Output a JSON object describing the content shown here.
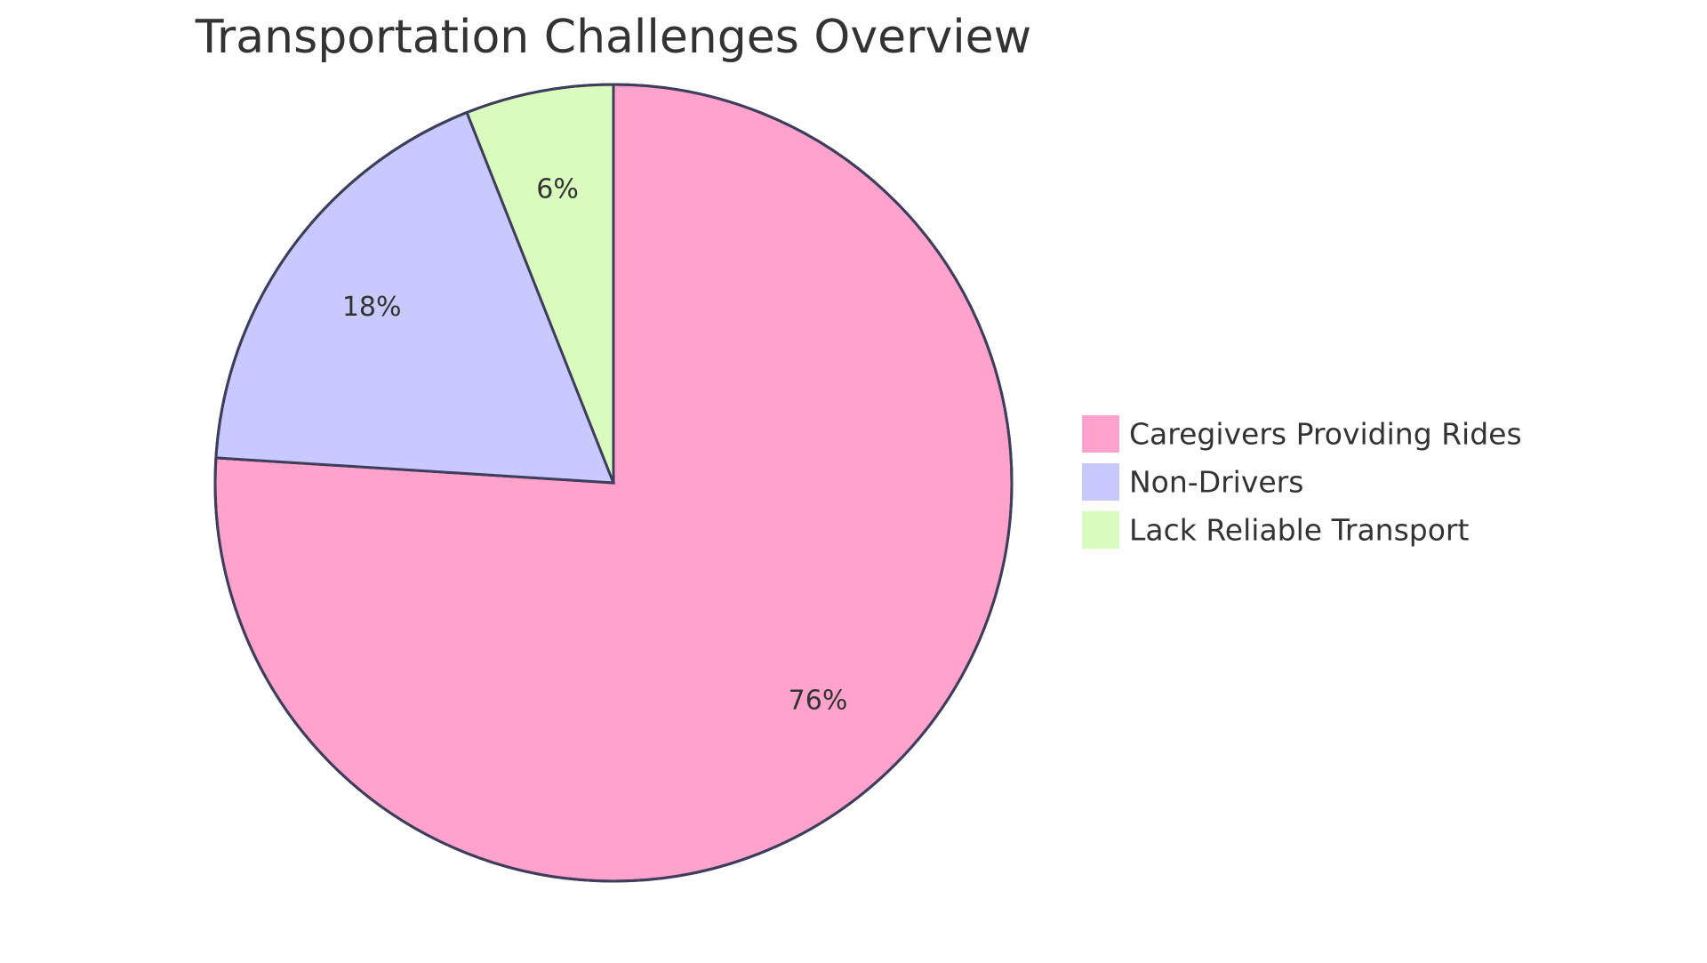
{
  "chart_data": {
    "type": "pie",
    "title": "Transportation Challenges Overview",
    "slices": [
      {
        "label": "Caregivers Providing Rides",
        "value": 76,
        "display": "76%",
        "color": "#FFA2CC"
      },
      {
        "label": "Non-Drivers",
        "value": 18,
        "display": "18%",
        "color": "#C8CAFF"
      },
      {
        "label": "Lack Reliable Transport",
        "value": 6,
        "display": "6%",
        "color": "#DAFBBE"
      }
    ],
    "stroke_color": "#3E3E5C",
    "legend_position": "right"
  }
}
